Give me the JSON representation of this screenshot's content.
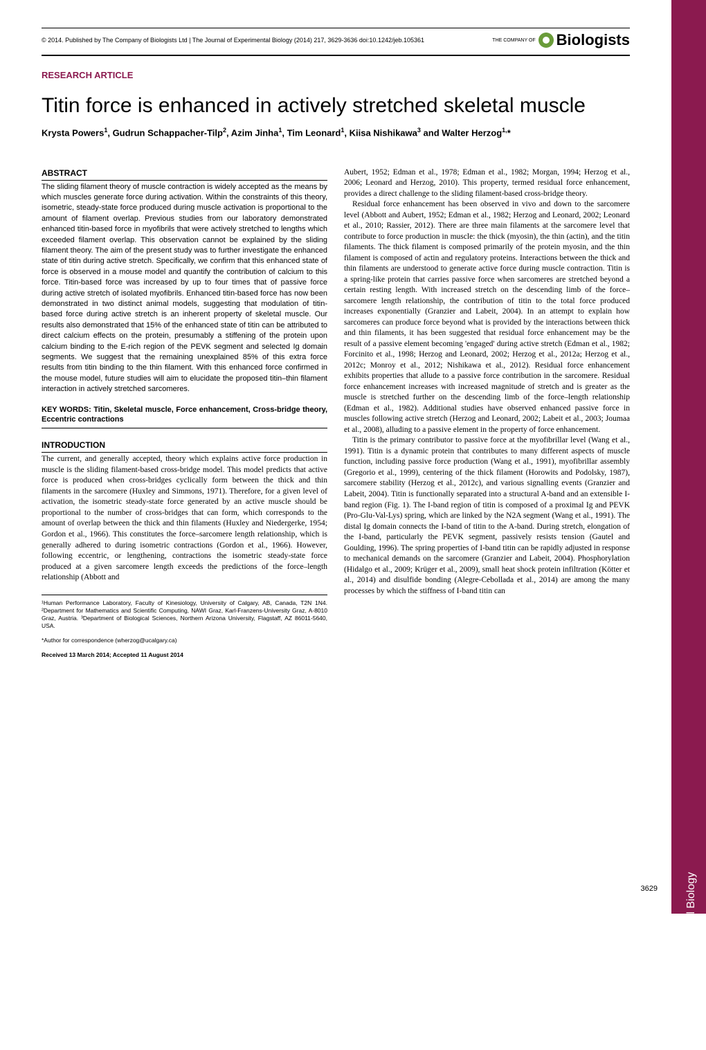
{
  "header": {
    "copyright": "© 2014. Published by The Company of Biologists Ltd | The Journal of Experimental Biology (2014) 217, 3629-3636 doi:10.1242/jeb.105361",
    "logo_pretext": "THE COMPANY OF",
    "logo_text": "Biologists"
  },
  "article_type": "RESEARCH ARTICLE",
  "title": "Titin force is enhanced in actively stretched skeletal muscle",
  "authors_html": "Krysta Powers<sup>1</sup>, Gudrun Schappacher-Tilp<sup>2</sup>, Azim Jinha<sup>1</sup>, Tim Leonard<sup>1</sup>, Kiisa Nishikawa<sup>3</sup> and Walter Herzog<sup>1,</sup>*",
  "abstract_heading": "ABSTRACT",
  "abstract": "The sliding filament theory of muscle contraction is widely accepted as the means by which muscles generate force during activation. Within the constraints of this theory, isometric, steady-state force produced during muscle activation is proportional to the amount of filament overlap. Previous studies from our laboratory demonstrated enhanced titin-based force in myofibrils that were actively stretched to lengths which exceeded filament overlap. This observation cannot be explained by the sliding filament theory. The aim of the present study was to further investigate the enhanced state of titin during active stretch. Specifically, we confirm that this enhanced state of force is observed in a mouse model and quantify the contribution of calcium to this force. Titin-based force was increased by up to four times that of passive force during active stretch of isolated myofibrils. Enhanced titin-based force has now been demonstrated in two distinct animal models, suggesting that modulation of titin-based force during active stretch is an inherent property of skeletal muscle. Our results also demonstrated that 15% of the enhanced state of titin can be attributed to direct calcium effects on the protein, presumably a stiffening of the protein upon calcium binding to the E-rich region of the PEVK segment and selected Ig domain segments. We suggest that the remaining unexplained 85% of this extra force results from titin binding to the thin filament. With this enhanced force confirmed in the mouse model, future studies will aim to elucidate the proposed titin–thin filament interaction in actively stretched sarcomeres.",
  "keywords": "KEY WORDS: Titin, Skeletal muscle, Force enhancement, Cross-bridge theory, Eccentric contractions",
  "intro_heading": "INTRODUCTION",
  "intro_p1": "The current, and generally accepted, theory which explains active force production in muscle is the sliding filament-based cross-bridge model. This model predicts that active force is produced when cross-bridges cyclically form between the thick and thin filaments in the sarcomere (Huxley and Simmons, 1971). Therefore, for a given level of activation, the isometric steady-state force generated by an active muscle should be proportional to the number of cross-bridges that can form, which corresponds to the amount of overlap between the thick and thin filaments (Huxley and Niedergerke, 1954; Gordon et al., 1966). This constitutes the force–sarcomere length relationship, which is generally adhered to during isometric contractions (Gordon et al., 1966). However, following eccentric, or lengthening, contractions the isometric steady-state force produced at a given sarcomere length exceeds the predictions of the force–length relationship (Abbott and",
  "col2_p1": "Aubert, 1952; Edman et al., 1978; Edman et al., 1982; Morgan, 1994; Herzog et al., 2006; Leonard and Herzog, 2010). This property, termed residual force enhancement, provides a direct challenge to the sliding filament-based cross-bridge theory.",
  "col2_p2": "Residual force enhancement has been observed in vivo and down to the sarcomere level (Abbott and Aubert, 1952; Edman et al., 1982; Herzog and Leonard, 2002; Leonard et al., 2010; Rassier, 2012). There are three main filaments at the sarcomere level that contribute to force production in muscle: the thick (myosin), the thin (actin), and the titin filaments. The thick filament is composed primarily of the protein myosin, and the thin filament is composed of actin and regulatory proteins. Interactions between the thick and thin filaments are understood to generate active force during muscle contraction. Titin is a spring-like protein that carries passive force when sarcomeres are stretched beyond a certain resting length. With increased stretch on the descending limb of the force–sarcomere length relationship, the contribution of titin to the total force produced increases exponentially (Granzier and Labeit, 2004). In an attempt to explain how sarcomeres can produce force beyond what is provided by the interactions between thick and thin filaments, it has been suggested that residual force enhancement may be the result of a passive element becoming 'engaged' during active stretch (Edman et al., 1982; Forcinito et al., 1998; Herzog and Leonard, 2002; Herzog et al., 2012a; Herzog et al., 2012c; Monroy et al., 2012; Nishikawa et al., 2012). Residual force enhancement exhibits properties that allude to a passive force contribution in the sarcomere. Residual force enhancement increases with increased magnitude of stretch and is greater as the muscle is stretched further on the descending limb of the force–length relationship (Edman et al., 1982). Additional studies have observed enhanced passive force in muscles following active stretch (Herzog and Leonard, 2002; Labeit et al., 2003; Joumaa et al., 2008), alluding to a passive element in the property of force enhancement.",
  "col2_p3": "Titin is the primary contributor to passive force at the myofibrillar level (Wang et al., 1991). Titin is a dynamic protein that contributes to many different aspects of muscle function, including passive force production (Wang et al., 1991), myofibrillar assembly (Gregorio et al., 1999), centering of the thick filament (Horowits and Podolsky, 1987), sarcomere stability (Herzog et al., 2012c), and various signalling events (Granzier and Labeit, 2004). Titin is functionally separated into a structural A-band and an extensible I-band region (Fig. 1). The I-band region of titin is composed of a proximal Ig and PEVK (Pro-Glu-Val-Lys) spring, which are linked by the N2A segment (Wang et al., 1991). The distal Ig domain connects the I-band of titin to the A-band. During stretch, elongation of the I-band, particularly the PEVK segment, passively resists tension (Gautel and Goulding, 1996). The spring properties of I-band titin can be rapidly adjusted in response to mechanical demands on the sarcomere (Granzier and Labeit, 2004). Phosphorylation (Hidalgo et al., 2009; Krüger et al., 2009), small heat shock protein infiltration (Kötter et al., 2014) and disulfide bonding (Alegre-Cebollada et al., 2014) are among the many processes by which the stiffness of I-band titin can",
  "affiliations": "¹Human Performance Laboratory, Faculty of Kinesiology, University of Calgary, AB, Canada, T2N 1N4. ²Department for Mathematics and Scientific Computing, NAWI Graz, Karl-Franzens-University Graz, A-8010 Graz, Austria. ³Department of Biological Sciences, Northern Arizona University, Flagstaff, AZ 86011-5640, USA.",
  "correspondence": "*Author for correspondence (wherzog@ucalgary.ca)",
  "received": "Received 13 March 2014; Accepted 11 August 2014",
  "sidebar_text": "The Journal of Experimental Biology",
  "page_number": "3629",
  "colors": {
    "accent": "#8b1a4f",
    "logo_green": "#6a9c3a"
  }
}
